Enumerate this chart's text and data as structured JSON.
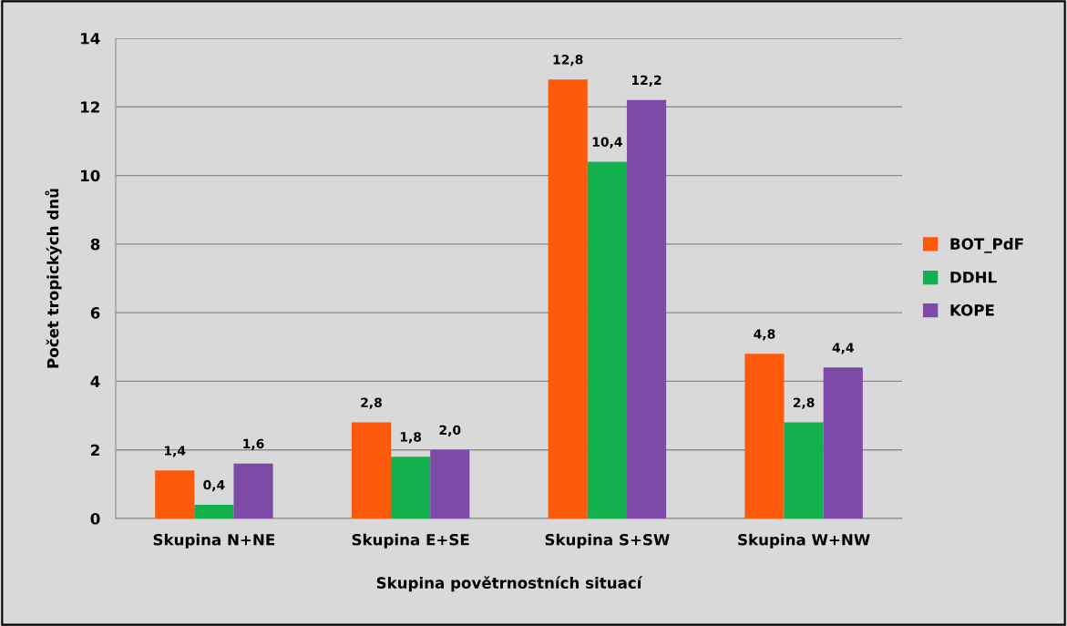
{
  "chart_data": {
    "type": "bar",
    "xlabel": "Skupina povětrnostních situací",
    "ylabel": "Počet tropických dnů",
    "categories": [
      "Skupina N+NE",
      "Skupina E+SE",
      "Skupina S+SW",
      "Skupina W+NW"
    ],
    "series": [
      {
        "name": "BOT_PdF",
        "color": "#fe5a0c",
        "values": [
          1.4,
          2.8,
          12.8,
          4.8
        ],
        "value_labels": [
          "1,4",
          "2,8",
          "12,8",
          "4,8"
        ]
      },
      {
        "name": "DDHL",
        "color": "#12b14d",
        "values": [
          0.4,
          1.8,
          10.4,
          2.8
        ],
        "value_labels": [
          "0,4",
          "1,8",
          "10,4",
          "2,8"
        ]
      },
      {
        "name": "KOPE",
        "color": "#7e4aa8",
        "values": [
          1.6,
          2.0,
          12.2,
          4.4
        ],
        "value_labels": [
          "1,6",
          "2,0",
          "12,2",
          "4,4"
        ]
      }
    ],
    "ylim": [
      0,
      14
    ],
    "yticks": [
      0,
      2,
      4,
      6,
      8,
      10,
      12,
      14
    ],
    "grid": "y",
    "legend": "right"
  }
}
